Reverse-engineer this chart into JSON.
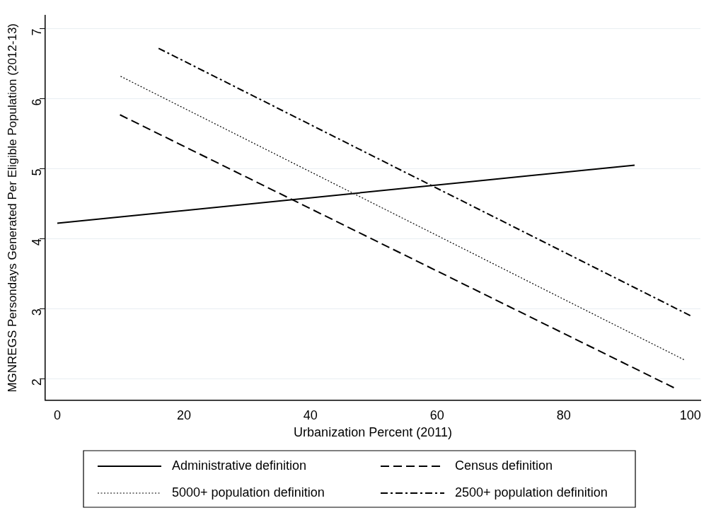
{
  "chart_data": {
    "type": "line",
    "xlabel": "Urbanization Percent (2011)",
    "ylabel": "MGNREGS Persondays Generated Per Eligible Population (2012-13)",
    "xlim": [
      -1.9,
      101.6
    ],
    "xticks": [
      0,
      20,
      40,
      60,
      80,
      100
    ],
    "ylim": [
      1.69,
      7.19
    ],
    "yticks": [
      2,
      3,
      4,
      5,
      6,
      7
    ],
    "grid": "y",
    "legend": "bottom",
    "marker": "none",
    "series": [
      {
        "name": "Administrative definition",
        "color": "#000000",
        "line_style": "solid",
        "x": [
          0,
          91.2
        ],
        "values": [
          4.22,
          5.05
        ]
      },
      {
        "name": "Census definition",
        "color": "#000000",
        "line_style": "dashed",
        "x": [
          9.9,
          97.4
        ],
        "values": [
          5.77,
          1.87
        ]
      },
      {
        "name": "5000+ population definition",
        "color": "#000000",
        "line_style": "dotted",
        "x": [
          10,
          99
        ],
        "values": [
          6.32,
          2.27
        ]
      },
      {
        "name": "2500+ population definition",
        "color": "#000000",
        "line_style": "dashdot",
        "x": [
          16,
          100
        ],
        "values": [
          6.72,
          2.9
        ]
      }
    ]
  }
}
